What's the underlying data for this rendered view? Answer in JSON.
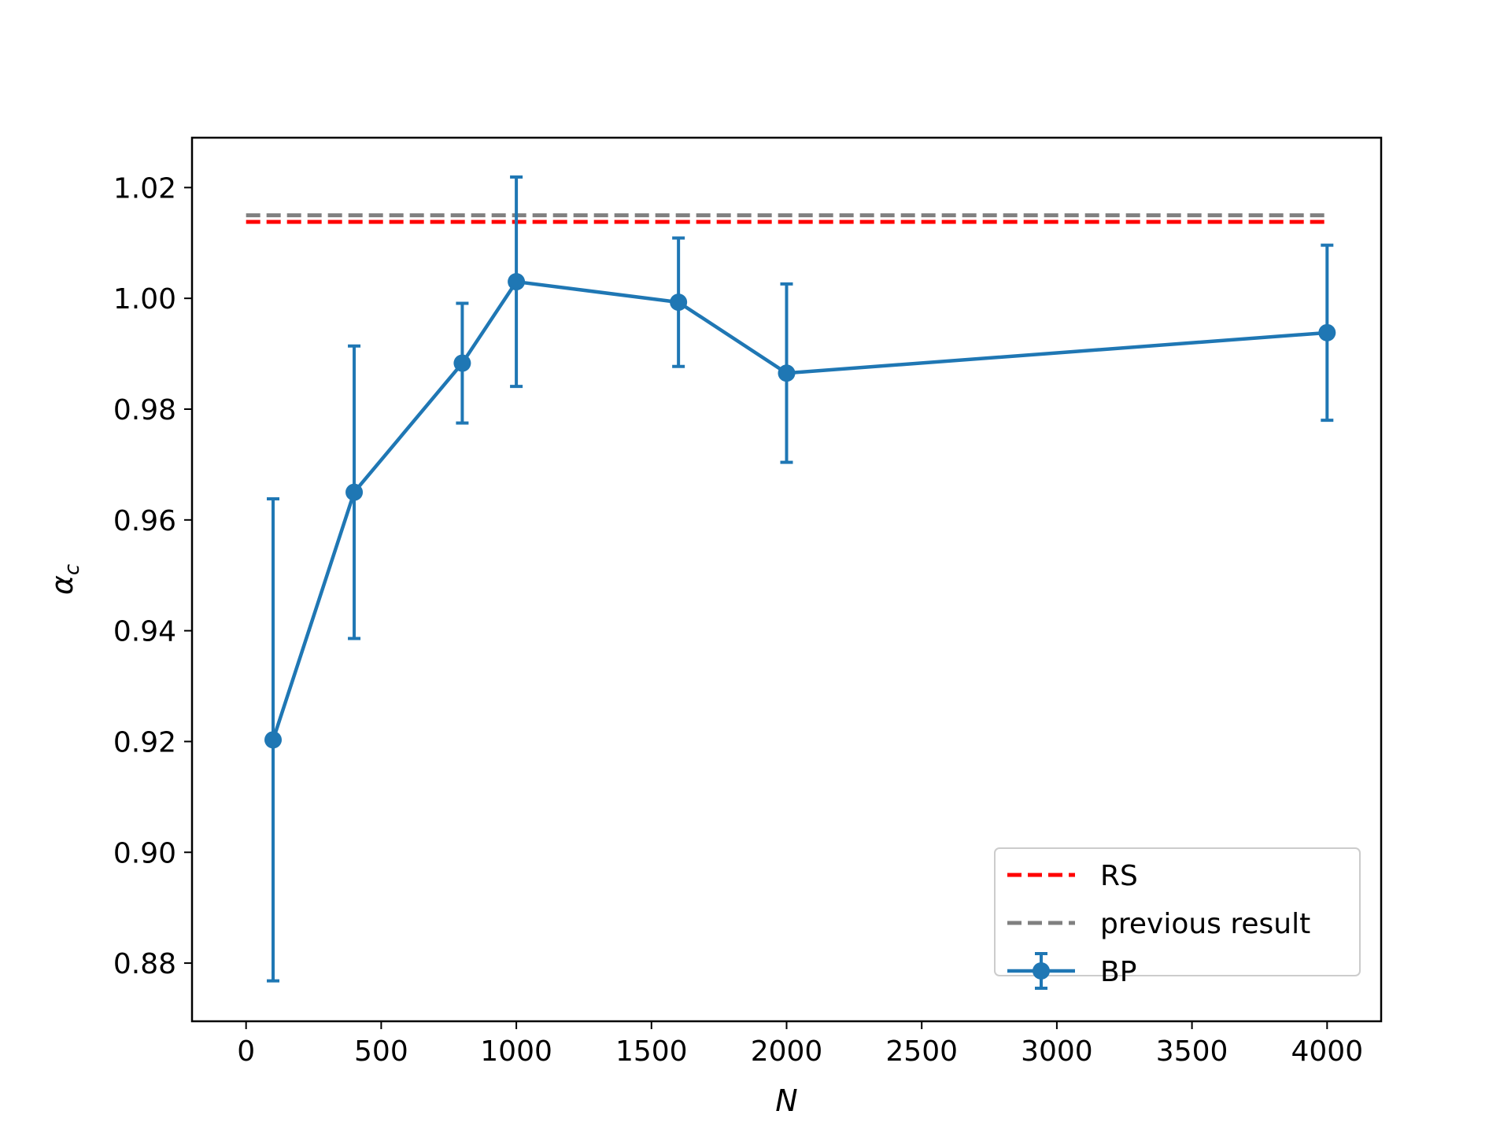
{
  "chart_data": {
    "type": "line",
    "title": "",
    "xlabel": "N",
    "ylabel_main": "α",
    "ylabel_sub": "c",
    "xlim": [
      -200,
      4200
    ],
    "ylim": [
      0.8695,
      1.029
    ],
    "xticks": [
      0,
      500,
      1000,
      1500,
      2000,
      2500,
      3000,
      3500,
      4000
    ],
    "xtick_labels": [
      "0",
      "500",
      "1000",
      "1500",
      "2000",
      "2500",
      "3000",
      "3500",
      "4000"
    ],
    "yticks": [
      0.88,
      0.9,
      0.92,
      0.94,
      0.96,
      0.98,
      1.0,
      1.02
    ],
    "ytick_labels": [
      "0.88",
      "0.90",
      "0.92",
      "0.94",
      "0.96",
      "0.98",
      "1.00",
      "1.02"
    ],
    "grid": false,
    "legend_position": "bottom-right",
    "series": [
      {
        "name": "RS",
        "kind": "hline",
        "style": "dashed",
        "color": "#ff0000",
        "x": [
          0,
          4000
        ],
        "y": [
          1.0138,
          1.0138
        ]
      },
      {
        "name": "previous result",
        "kind": "hline",
        "style": "dashed",
        "color": "#808080",
        "x": [
          0,
          4000
        ],
        "y": [
          1.015,
          1.015
        ]
      },
      {
        "name": "BP",
        "kind": "errorbar",
        "color": "#1f77b4",
        "x": [
          100,
          400,
          800,
          1000,
          1600,
          2000,
          4000
        ],
        "y": [
          0.9203,
          0.965,
          0.9883,
          1.003,
          0.9993,
          0.9865,
          0.9938
        ],
        "yerr": [
          0.0435,
          0.0264,
          0.0108,
          0.0189,
          0.0116,
          0.0161,
          0.0158
        ]
      }
    ]
  }
}
